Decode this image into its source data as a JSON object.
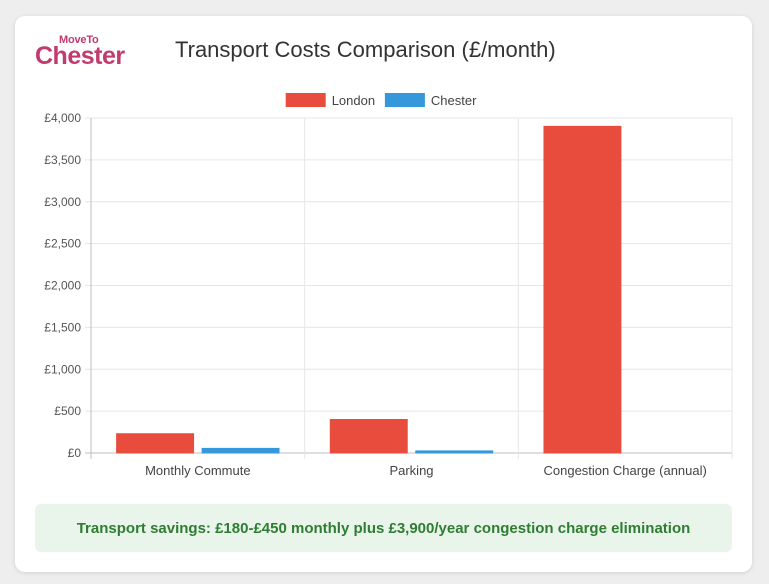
{
  "logo": {
    "top": "MoveTo",
    "main": "Chester"
  },
  "chart_data": {
    "type": "bar",
    "title": "Transport Costs Comparison (£/month)",
    "categories": [
      "Monthly Commute",
      "Parking",
      "Congestion Charge (annual)"
    ],
    "series": [
      {
        "name": "London",
        "values": [
          230,
          400,
          3900
        ],
        "color": "#e74c3c"
      },
      {
        "name": "Chester",
        "values": [
          55,
          25,
          0
        ],
        "color": "#3498db"
      }
    ],
    "ylim": [
      0,
      4000
    ],
    "yticks": [
      0,
      500,
      1000,
      1500,
      2000,
      2500,
      3000,
      3500,
      4000
    ],
    "ytick_labels": [
      "£0",
      "£500",
      "£1,000",
      "£1,500",
      "£2,000",
      "£2,500",
      "£3,000",
      "£3,500",
      "£4,000"
    ],
    "legend_position": "top",
    "grid": true
  },
  "savings": {
    "text": "Transport savings: £180-£450 monthly plus £3,900/year congestion charge elimination"
  }
}
